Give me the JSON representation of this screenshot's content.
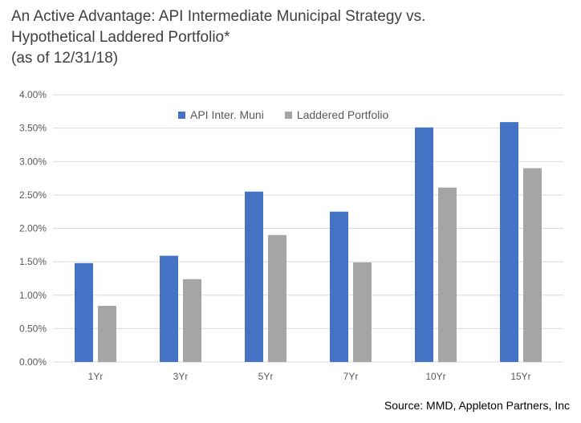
{
  "colors": {
    "api": "#4472C4",
    "laddered": "#A5A5A5",
    "grid": "#D9D9D9",
    "axis_text": "#595959"
  },
  "title": {
    "line1": "An Active Advantage: API Intermediate Municipal Strategy vs.",
    "line2": "Hypothetical Laddered Portfolio*",
    "line3": "(as of 12/31/18)"
  },
  "source": "Source: MMD, Appleton Partners, Inc",
  "chart_data": {
    "type": "bar",
    "categories": [
      "1Yr",
      "3Yr",
      "5Yr",
      "7Yr",
      "10Yr",
      "15Yr"
    ],
    "series": [
      {
        "name": "API Inter. Muni",
        "values": [
          1.48,
          1.59,
          2.55,
          2.25,
          3.51,
          3.59
        ]
      },
      {
        "name": "Laddered Portfolio",
        "values": [
          0.84,
          1.24,
          1.9,
          1.49,
          2.61,
          2.9
        ]
      }
    ],
    "yticks": [
      "0.00%",
      "0.50%",
      "1.00%",
      "1.50%",
      "2.00%",
      "2.50%",
      "3.00%",
      "3.50%",
      "4.00%"
    ],
    "ylim": [
      0,
      4
    ],
    "grid": true,
    "legend_position": "top-center"
  }
}
